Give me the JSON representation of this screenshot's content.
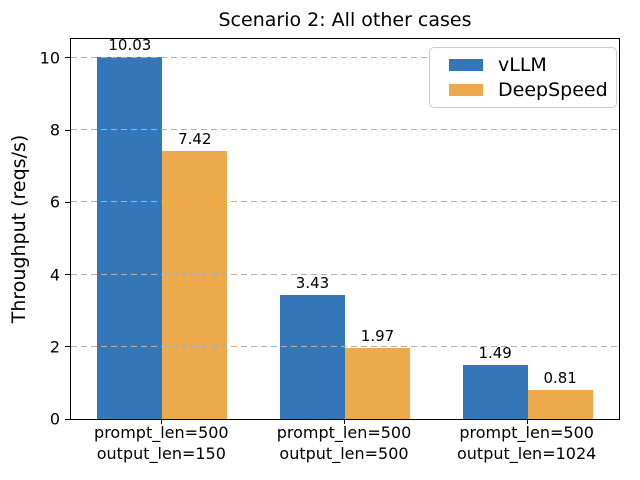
{
  "chart_data": {
    "type": "bar",
    "title": "Scenario 2: All other cases",
    "xlabel": "",
    "ylabel": "Throughput (reqs/s)",
    "categories": [
      "prompt_len=500\noutput_len=150",
      "prompt_len=500\noutput_len=500",
      "prompt_len=500\noutput_len=1024"
    ],
    "series": [
      {
        "name": "vLLM",
        "color": "#3477b8",
        "values": [
          10.03,
          3.43,
          1.49
        ]
      },
      {
        "name": "DeepSpeed",
        "color": "#ecaa4c",
        "values": [
          7.42,
          1.97,
          0.81
        ]
      }
    ],
    "bar_value_labels": [
      "10.03",
      "7.42",
      "3.43",
      "1.97",
      "1.49",
      "0.81"
    ],
    "yticks": [
      0,
      2,
      4,
      6,
      8,
      10
    ],
    "ylim": [
      0,
      10.52
    ],
    "grid": {
      "axis": "y",
      "style": "dashed",
      "color": "#b0b0b0",
      "drawn_over_bars": true
    },
    "legend": {
      "position": "upper right",
      "entries": [
        "vLLM",
        "DeepSpeed"
      ]
    }
  },
  "colors": {
    "background": "#ffffff",
    "axis": "#000000",
    "grid": "#b0b0b0",
    "legend_border": "#cccccc",
    "vllm_blue": "#3477b8",
    "deepspeed_orange": "#ecaa4c"
  }
}
